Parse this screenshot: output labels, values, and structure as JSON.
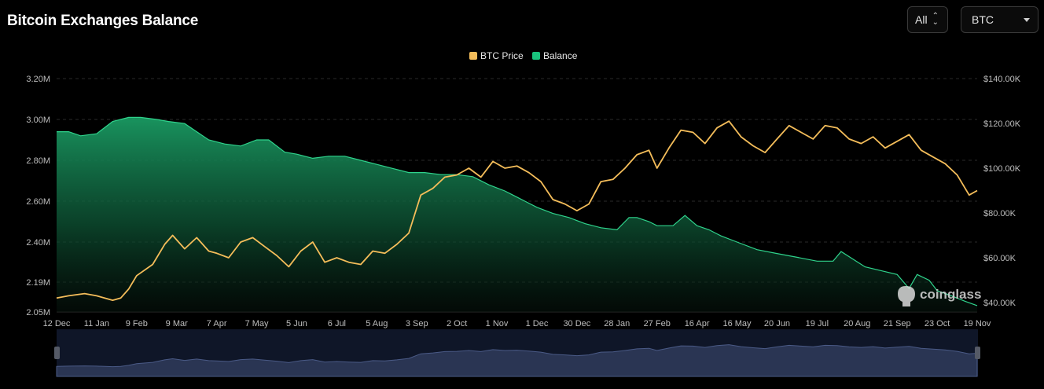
{
  "header": {
    "title": "Bitcoin Exchanges Balance",
    "range_select": "All",
    "asset_select": "BTC"
  },
  "watermark": "coinglass",
  "colors": {
    "price": "#f4bd5a",
    "balance": "#19c37d",
    "grid": "#2a2a2a",
    "axis_text": "#bdbdbd",
    "navigator_fill": "#2a3553"
  },
  "chart_data": {
    "type": "area",
    "title": "Bitcoin Exchanges Balance",
    "legend": [
      "BTC Price",
      "Balance"
    ],
    "legend_position": "top-center",
    "grid": true,
    "x_ticks": [
      "12 Dec",
      "11 Jan",
      "9 Feb",
      "9 Mar",
      "7 Apr",
      "7 May",
      "5 Jun",
      "6 Jul",
      "5 Aug",
      "3 Sep",
      "2 Oct",
      "1 Nov",
      "1 Dec",
      "30 Dec",
      "28 Jan",
      "27 Feb",
      "16 Apr",
      "16 May",
      "20 Jun",
      "19 Jul",
      "20 Aug",
      "21 Sep",
      "23 Oct",
      "19 Nov"
    ],
    "y_left_ticks": [
      "3.20M",
      "3.00M",
      "2.80M",
      "2.60M",
      "2.40M",
      "2.19M",
      "2.05M"
    ],
    "y_left_values": [
      3.2,
      3.0,
      2.8,
      2.6,
      2.4,
      2.19,
      2.05
    ],
    "y_right_ticks": [
      "$140.00K",
      "$120.00K",
      "$100.00K",
      "$80.00K",
      "$60.00K",
      "$40.00K"
    ],
    "y_right_values": [
      140,
      120,
      100,
      80,
      60,
      40
    ],
    "y_left_range": [
      2.05,
      3.2
    ],
    "y_right_range": [
      40,
      140
    ],
    "series": [
      {
        "name": "Balance",
        "axis": "left",
        "unit": "M BTC",
        "x": [
          0,
          0.3,
          0.6,
          1.0,
          1.4,
          1.8,
          2.1,
          2.5,
          2.8,
          3.2,
          3.5,
          3.8,
          4.2,
          4.6,
          5.0,
          5.3,
          5.7,
          6.0,
          6.4,
          6.8,
          7.2,
          7.6,
          8.0,
          8.4,
          8.8,
          9.2,
          9.6,
          10.0,
          10.4,
          10.8,
          11.2,
          11.4,
          11.7,
          12.0,
          12.4,
          12.8,
          13.2,
          13.6,
          14.0,
          14.3,
          14.5,
          14.8,
          15.0,
          15.4,
          15.7,
          16.0,
          16.3,
          16.5,
          16.6,
          17.0,
          17.5,
          18.0,
          18.5,
          19.0,
          19.4,
          19.6,
          19.9,
          20.2,
          20.6,
          21.0,
          21.3,
          21.5,
          21.8,
          22.0,
          22.3,
          22.7,
          23.0
        ],
        "values": [
          2.94,
          2.94,
          2.92,
          2.93,
          2.99,
          3.01,
          3.01,
          3.0,
          2.99,
          2.98,
          2.94,
          2.9,
          2.88,
          2.87,
          2.9,
          2.9,
          2.84,
          2.83,
          2.81,
          2.82,
          2.82,
          2.8,
          2.78,
          2.76,
          2.74,
          2.74,
          2.73,
          2.73,
          2.72,
          2.68,
          2.65,
          2.63,
          2.6,
          2.57,
          2.54,
          2.52,
          2.49,
          2.47,
          2.46,
          2.52,
          2.52,
          2.5,
          2.48,
          2.48,
          2.53,
          2.48,
          2.46,
          2.44,
          2.43,
          2.4,
          2.36,
          2.34,
          2.32,
          2.3,
          2.3,
          2.35,
          2.31,
          2.27,
          2.25,
          2.23,
          2.16,
          2.23,
          2.2,
          2.15,
          2.13,
          2.1,
          2.08
        ]
      },
      {
        "name": "BTC Price",
        "axis": "right",
        "unit": "$K",
        "x": [
          0,
          0.3,
          0.7,
          1.0,
          1.4,
          1.6,
          1.8,
          2.0,
          2.4,
          2.7,
          2.9,
          3.2,
          3.5,
          3.8,
          4.0,
          4.3,
          4.6,
          4.9,
          5.2,
          5.5,
          5.8,
          6.1,
          6.4,
          6.7,
          7.0,
          7.3,
          7.6,
          7.9,
          8.2,
          8.5,
          8.8,
          9.1,
          9.4,
          9.7,
          10.0,
          10.3,
          10.6,
          10.9,
          11.2,
          11.5,
          11.8,
          12.1,
          12.4,
          12.7,
          13.0,
          13.3,
          13.6,
          13.9,
          14.2,
          14.5,
          14.8,
          15.0,
          15.3,
          15.6,
          15.9,
          16.2,
          16.5,
          16.8,
          17.1,
          17.4,
          17.7,
          18.0,
          18.3,
          18.6,
          18.9,
          19.2,
          19.5,
          19.8,
          20.1,
          20.4,
          20.7,
          21.0,
          21.3,
          21.6,
          21.9,
          22.2,
          22.5,
          22.8,
          23.0
        ],
        "values": [
          42,
          43,
          44,
          43,
          41,
          42,
          46,
          52,
          57,
          66,
          70,
          64,
          69,
          63,
          62,
          60,
          67,
          69,
          65,
          61,
          56,
          63,
          67,
          58,
          60,
          58,
          57,
          63,
          62,
          66,
          71,
          88,
          91,
          96,
          97,
          100,
          96,
          103,
          100,
          101,
          98,
          94,
          86,
          84,
          81,
          84,
          94,
          95,
          100,
          106,
          108,
          100,
          109,
          117,
          116,
          111,
          118,
          121,
          114,
          110,
          107,
          113,
          119,
          116,
          113,
          119,
          118,
          113,
          111,
          114,
          109,
          112,
          115,
          108,
          105,
          102,
          97,
          88,
          90
        ]
      }
    ]
  }
}
